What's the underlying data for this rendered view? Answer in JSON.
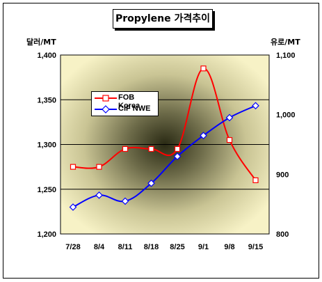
{
  "chart_data": {
    "type": "line",
    "title": "Propylene 가격추이",
    "categories": [
      "7/28",
      "8/4",
      "8/11",
      "8/18",
      "8/25",
      "9/1",
      "9/8",
      "9/15"
    ],
    "series": [
      {
        "name": "FOB Korea",
        "axis": "left",
        "color": "#FF0000",
        "marker": "square",
        "values": [
          1275,
          1275,
          1295,
          1295,
          1295,
          1385,
          1305,
          1260
        ]
      },
      {
        "name": "CIF NWE",
        "axis": "right",
        "color": "#0000FF",
        "marker": "diamond",
        "values": [
          845,
          865,
          855,
          885,
          930,
          965,
          995,
          1015
        ]
      }
    ],
    "left_axis": {
      "label": "달러/MT",
      "ylim": [
        1200,
        1400
      ],
      "ticks": [
        1200,
        1250,
        1300,
        1350,
        1400
      ],
      "tick_labels": [
        "1,200",
        "1,250",
        "1,300",
        "1,350",
        "1,400"
      ]
    },
    "right_axis": {
      "label": "유로/MT",
      "ylim": [
        800,
        1100
      ],
      "ticks": [
        800,
        900,
        1000,
        1100
      ],
      "tick_labels": [
        "800",
        "900",
        "1,000",
        "1,100"
      ]
    },
    "grid": true,
    "legend_position": "upper-left"
  }
}
